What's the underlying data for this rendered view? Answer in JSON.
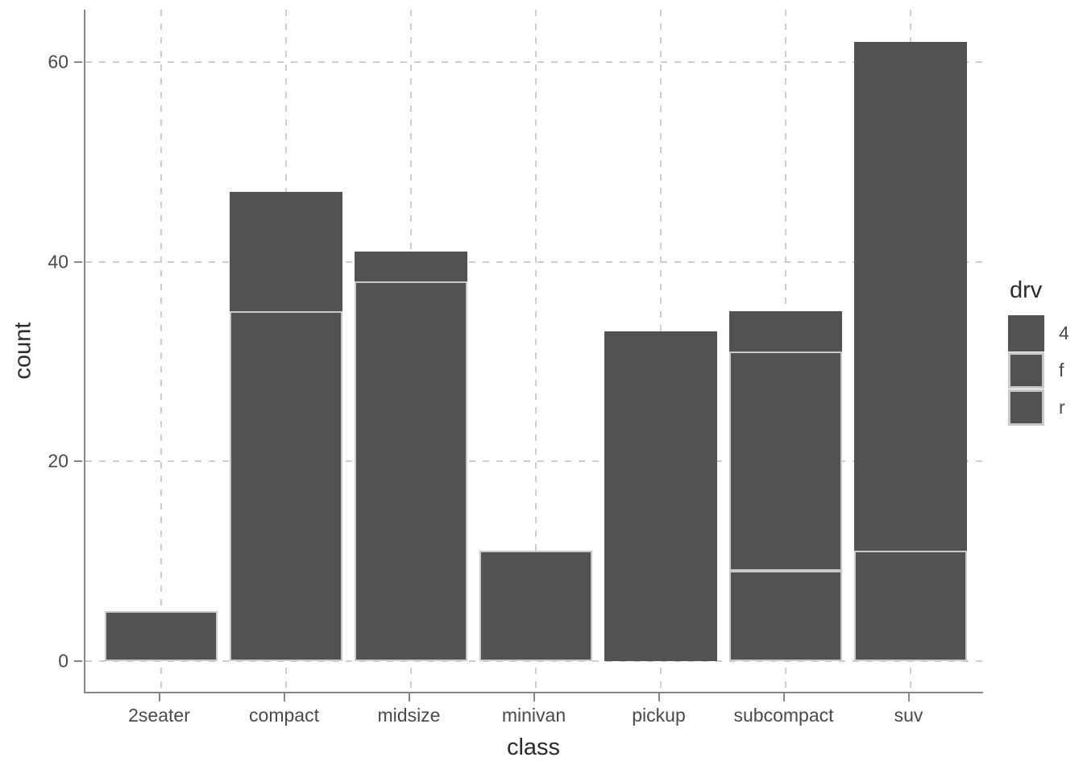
{
  "figure": {
    "background": "#ffffff",
    "legend": {
      "title": "drv",
      "entries": [
        {
          "label": "4",
          "outlined": false
        },
        {
          "label": "f",
          "outlined": true
        },
        {
          "label": "r",
          "outlined": true
        }
      ]
    },
    "colors": {
      "bar_fill": "#525252",
      "segment_border": "#c8c8c8",
      "axis_line": "#868686",
      "gridline": "#cdcdcd",
      "tick_text": "#4a4a4a",
      "title_text": "#2b2b2b"
    }
  },
  "chart_data": {
    "type": "bar",
    "stacked": true,
    "title": "",
    "xlabel": "class",
    "ylabel": "count",
    "categories": [
      "2seater",
      "compact",
      "midsize",
      "minivan",
      "pickup",
      "subcompact",
      "suv"
    ],
    "series": [
      {
        "name": "4",
        "values": [
          0,
          12,
          3,
          0,
          33,
          4,
          51
        ],
        "outlined": false
      },
      {
        "name": "f",
        "values": [
          0,
          35,
          38,
          11,
          0,
          22,
          0
        ],
        "outlined": true
      },
      {
        "name": "r",
        "values": [
          5,
          0,
          0,
          0,
          0,
          9,
          11
        ],
        "outlined": true
      }
    ],
    "stack_order_bottom_to_top": [
      "r",
      "f",
      "4"
    ],
    "totals": [
      5,
      47,
      41,
      11,
      33,
      35,
      62
    ],
    "ylim": [
      0,
      65
    ],
    "yticks": [
      0,
      20,
      40,
      60
    ],
    "grid": "dashed-major-only",
    "legend_position": "right"
  }
}
